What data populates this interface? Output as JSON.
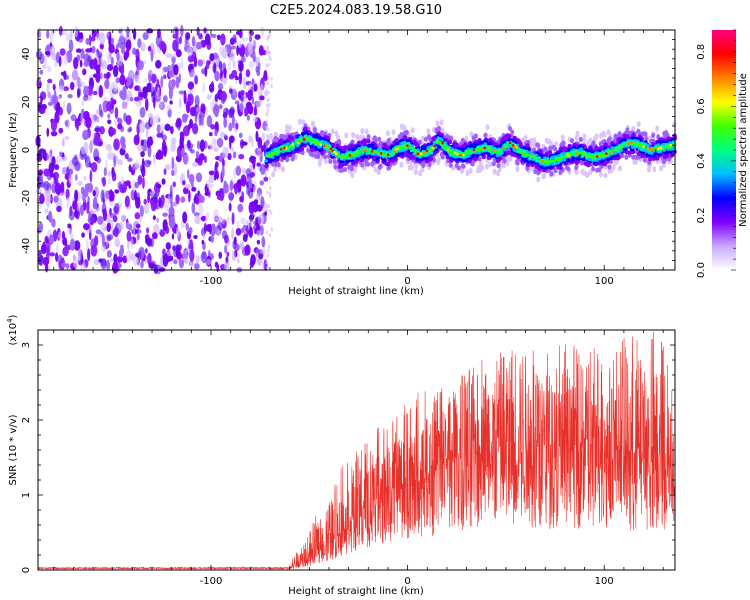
{
  "title": "C2E5.2024.083.19.58.G10",
  "chart_data": [
    {
      "type": "heatmap",
      "xlabel": "Height of straight line (km)",
      "ylabel": "Frequency (Hz)",
      "xlim": [
        -188,
        136
      ],
      "ylim": [
        -50,
        50
      ],
      "x_ticks": [
        -100,
        0,
        100
      ],
      "x_tick_labels": [
        "-100",
        "0",
        "100"
      ],
      "y_ticks": [
        -40,
        -20,
        0,
        20,
        40
      ],
      "y_tick_labels": [
        "-40",
        "-20",
        "0",
        "20",
        "40"
      ],
      "noise_region_x": [
        -188,
        -72
      ],
      "signal_region_x": [
        -72,
        136
      ],
      "signal_frequency_trace": {
        "x": [
          -72,
          -65,
          -58,
          -52,
          -46,
          -40,
          -34,
          -28,
          -22,
          -16,
          -10,
          -4,
          0,
          6,
          12,
          16,
          22,
          28,
          34,
          40,
          46,
          52,
          58,
          64,
          70,
          76,
          82,
          88,
          94,
          100,
          106,
          112,
          118,
          124,
          130,
          136
        ],
        "y": [
          -3,
          0,
          2,
          5,
          3,
          1,
          -3,
          -2,
          0,
          -1,
          -2,
          1,
          2,
          -2,
          0,
          4,
          -1,
          -2,
          0,
          1,
          -1,
          3,
          -1,
          -3,
          -5,
          -4,
          -2,
          -1,
          -3,
          -2,
          0,
          3,
          2,
          0,
          1,
          2
        ]
      },
      "colorbar": {
        "label": "Normalized spectral amplitude",
        "range": [
          0,
          0.88
        ],
        "ticks": [
          0.0,
          0.2,
          0.4,
          0.6,
          0.8
        ],
        "tick_labels": [
          "0.0",
          "0.2",
          "0.4",
          "0.6",
          "0.8"
        ],
        "colors": [
          "#ffffff",
          "#c8a8ff",
          "#7f00ff",
          "#0000ff",
          "#00bfff",
          "#00ff80",
          "#40ff00",
          "#ffff00",
          "#ff8000",
          "#ff0000",
          "#ff0080"
        ]
      }
    },
    {
      "type": "line",
      "xlabel": "Height of straight line (km)",
      "ylabel": "SNR (10 * v/v)",
      "y_multiplier": "(x10",
      "y_multiplier_exp": "4",
      "y_multiplier_close": ")",
      "xlim": [
        -188,
        136
      ],
      "ylim": [
        0,
        3.2
      ],
      "x_ticks": [
        -100,
        0,
        100
      ],
      "x_tick_labels": [
        "-100",
        "0",
        "100"
      ],
      "y_ticks": [
        0,
        1,
        2,
        3
      ],
      "y_tick_labels": [
        "0",
        "1",
        "2",
        "3"
      ],
      "line_color": "#e8302a",
      "envelope": {
        "x": [
          -188,
          -80,
          -60,
          -50,
          -44,
          -40,
          -35,
          -30,
          -25,
          -20,
          -15,
          -10,
          -5,
          0,
          10,
          20,
          30,
          40,
          50,
          60,
          70,
          80,
          90,
          100,
          110,
          120,
          130,
          136
        ],
        "mean": [
          0.02,
          0.02,
          0.03,
          0.12,
          0.3,
          0.35,
          0.45,
          0.6,
          0.75,
          0.85,
          0.95,
          1.0,
          1.05,
          1.1,
          1.25,
          1.4,
          1.5,
          1.6,
          1.65,
          1.6,
          1.55,
          1.6,
          1.55,
          1.55,
          1.5,
          1.45,
          1.4,
          1.3
        ],
        "max": [
          0.05,
          0.06,
          0.1,
          0.5,
          0.9,
          0.9,
          1.4,
          1.55,
          1.6,
          1.75,
          1.9,
          1.95,
          2.2,
          2.25,
          2.5,
          2.45,
          2.7,
          2.9,
          3.0,
          3.05,
          3.0,
          3.05,
          3.0,
          2.95,
          3.1,
          3.2,
          3.25,
          2.3
        ]
      }
    }
  ]
}
